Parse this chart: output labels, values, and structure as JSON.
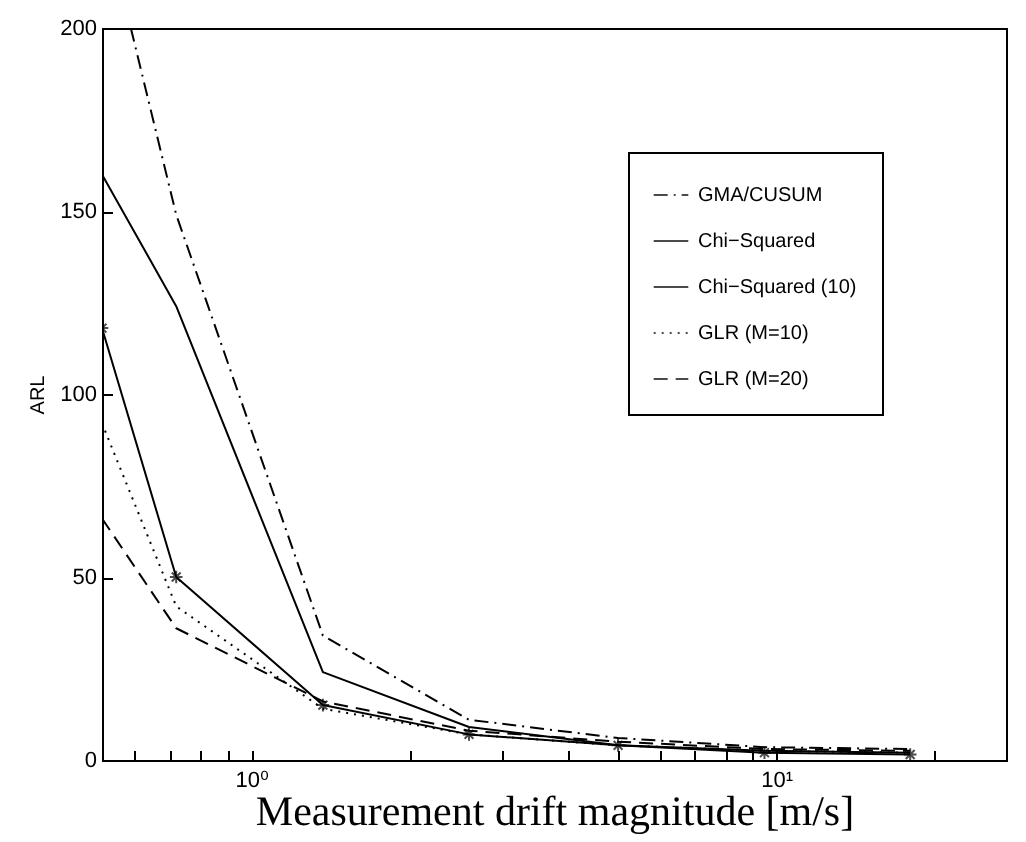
{
  "chart_data": {
    "type": "line",
    "xlabel": "Measurement drift magnitude [m/s]",
    "ylabel": "ARL",
    "x": [
      0.52,
      0.72,
      1.37,
      2.6,
      5,
      9.5,
      18
    ],
    "series": [
      {
        "name": "GMA/CUSUM",
        "color": "#000000",
        "line_style": "dashdot",
        "x": [
          0.59,
          0.72,
          1.37,
          2.6,
          5,
          9.5,
          18
        ],
        "values": [
          200,
          149,
          34,
          11,
          6,
          3.5,
          3
        ]
      },
      {
        "name": "Chi−Squared",
        "color": "#000000",
        "line_style": "solid",
        "values": [
          160,
          124,
          24,
          9,
          4,
          2.5,
          2
        ]
      },
      {
        "name": "Chi−Squared (10)",
        "color": "#000000",
        "line_style": "solid",
        "marker": "cross",
        "values": [
          118,
          50,
          15,
          7,
          4,
          2,
          1.5
        ]
      },
      {
        "name": "GLR (M=10)",
        "color": "#000000",
        "line_style": "dotted",
        "values": [
          92,
          42,
          14,
          7,
          4,
          2.5,
          2
        ]
      },
      {
        "name": "GLR (M=20)",
        "color": "#000000",
        "line_style": "dashed",
        "values": [
          66,
          36,
          16,
          8,
          5,
          3,
          2.5
        ]
      }
    ],
    "log": "x",
    "xlim": [
      0.52,
      27.4
    ],
    "xticks": [
      {
        "value": 0.6,
        "label": null
      },
      {
        "value": 0.7,
        "label": null
      },
      {
        "value": 0.8,
        "label": null
      },
      {
        "value": 0.9,
        "label": null
      },
      {
        "value": 1,
        "label": "10⁰"
      },
      {
        "value": 2,
        "label": null
      },
      {
        "value": 3,
        "label": null
      },
      {
        "value": 4,
        "label": null
      },
      {
        "value": 5,
        "label": null
      },
      {
        "value": 6,
        "label": null
      },
      {
        "value": 7,
        "label": null
      },
      {
        "value": 8,
        "label": null
      },
      {
        "value": 9,
        "label": null
      },
      {
        "value": 10,
        "label": "10¹"
      },
      {
        "value": 20,
        "label": null
      }
    ],
    "ylim": [
      0,
      200
    ],
    "yticks": [
      0,
      50,
      100,
      150,
      200
    ],
    "legend": "top right"
  }
}
